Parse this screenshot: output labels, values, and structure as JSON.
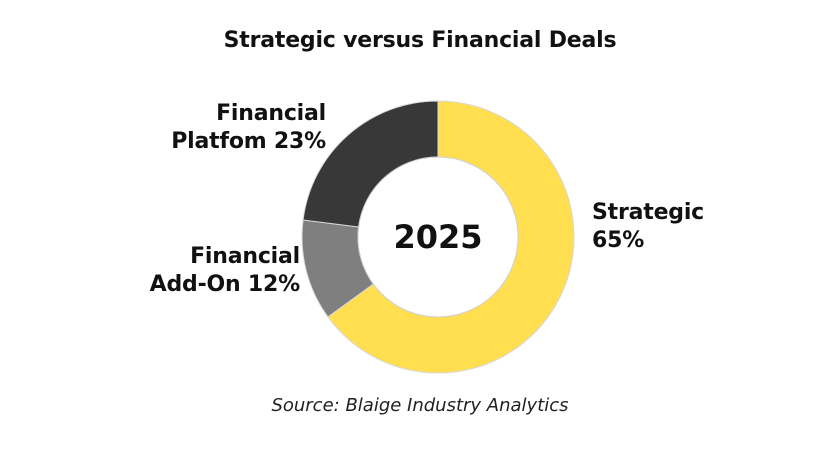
{
  "chart_data": {
    "type": "pie",
    "donut": true,
    "title": "Strategic versus Financial Deals",
    "center_label": "2025",
    "source": "Source: Blaige Industry Analytics",
    "slices": [
      {
        "name": "Strategic",
        "value": 65,
        "color": "#ffdf4f",
        "label_lines": [
          "Strategic",
          "65%"
        ]
      },
      {
        "name": "Financial Add-On",
        "value": 12,
        "color": "#7f7f7f",
        "label_lines": [
          "Financial",
          "Add-On 12%"
        ]
      },
      {
        "name": "Financial Platfom",
        "value": 23,
        "color": "#383838",
        "label_lines": [
          "Financial",
          "Platfom 23%"
        ]
      }
    ],
    "start_angle_deg": 0,
    "direction": "clockwise",
    "legend": "none"
  }
}
